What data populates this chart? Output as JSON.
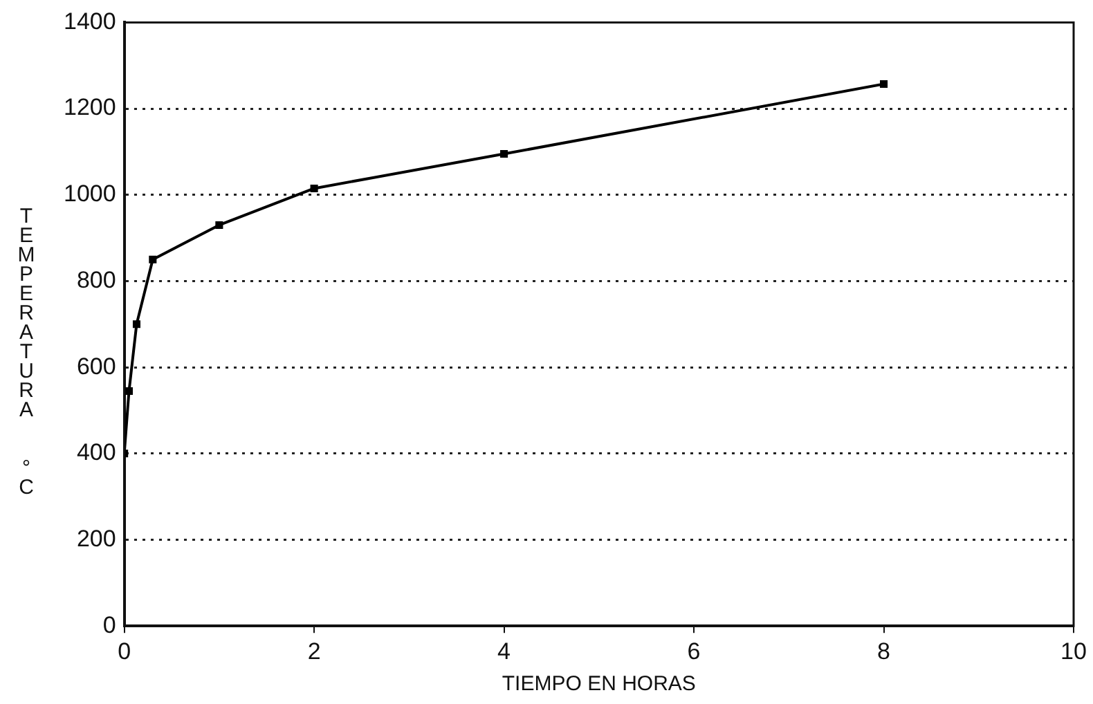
{
  "chart_data": {
    "type": "line",
    "xlabel": "TIEMPO EN HORAS",
    "ylabel": "TEMPERATURA °C",
    "x": [
      0,
      0.05,
      0.13,
      0.3,
      1,
      2,
      4,
      8
    ],
    "series": [
      {
        "color": "#000000",
        "values": [
          400,
          545,
          700,
          850,
          930,
          1015,
          1095,
          1257
        ]
      }
    ],
    "xlim": [
      0,
      10
    ],
    "xticks": [
      0,
      2,
      4,
      6,
      8,
      10
    ],
    "ylim": [
      0,
      1400
    ],
    "yticks": [
      0,
      200,
      400,
      600,
      800,
      1000,
      1200,
      1400
    ],
    "grid": "y",
    "marker": "square",
    "line_style": "solid",
    "legend": false
  }
}
